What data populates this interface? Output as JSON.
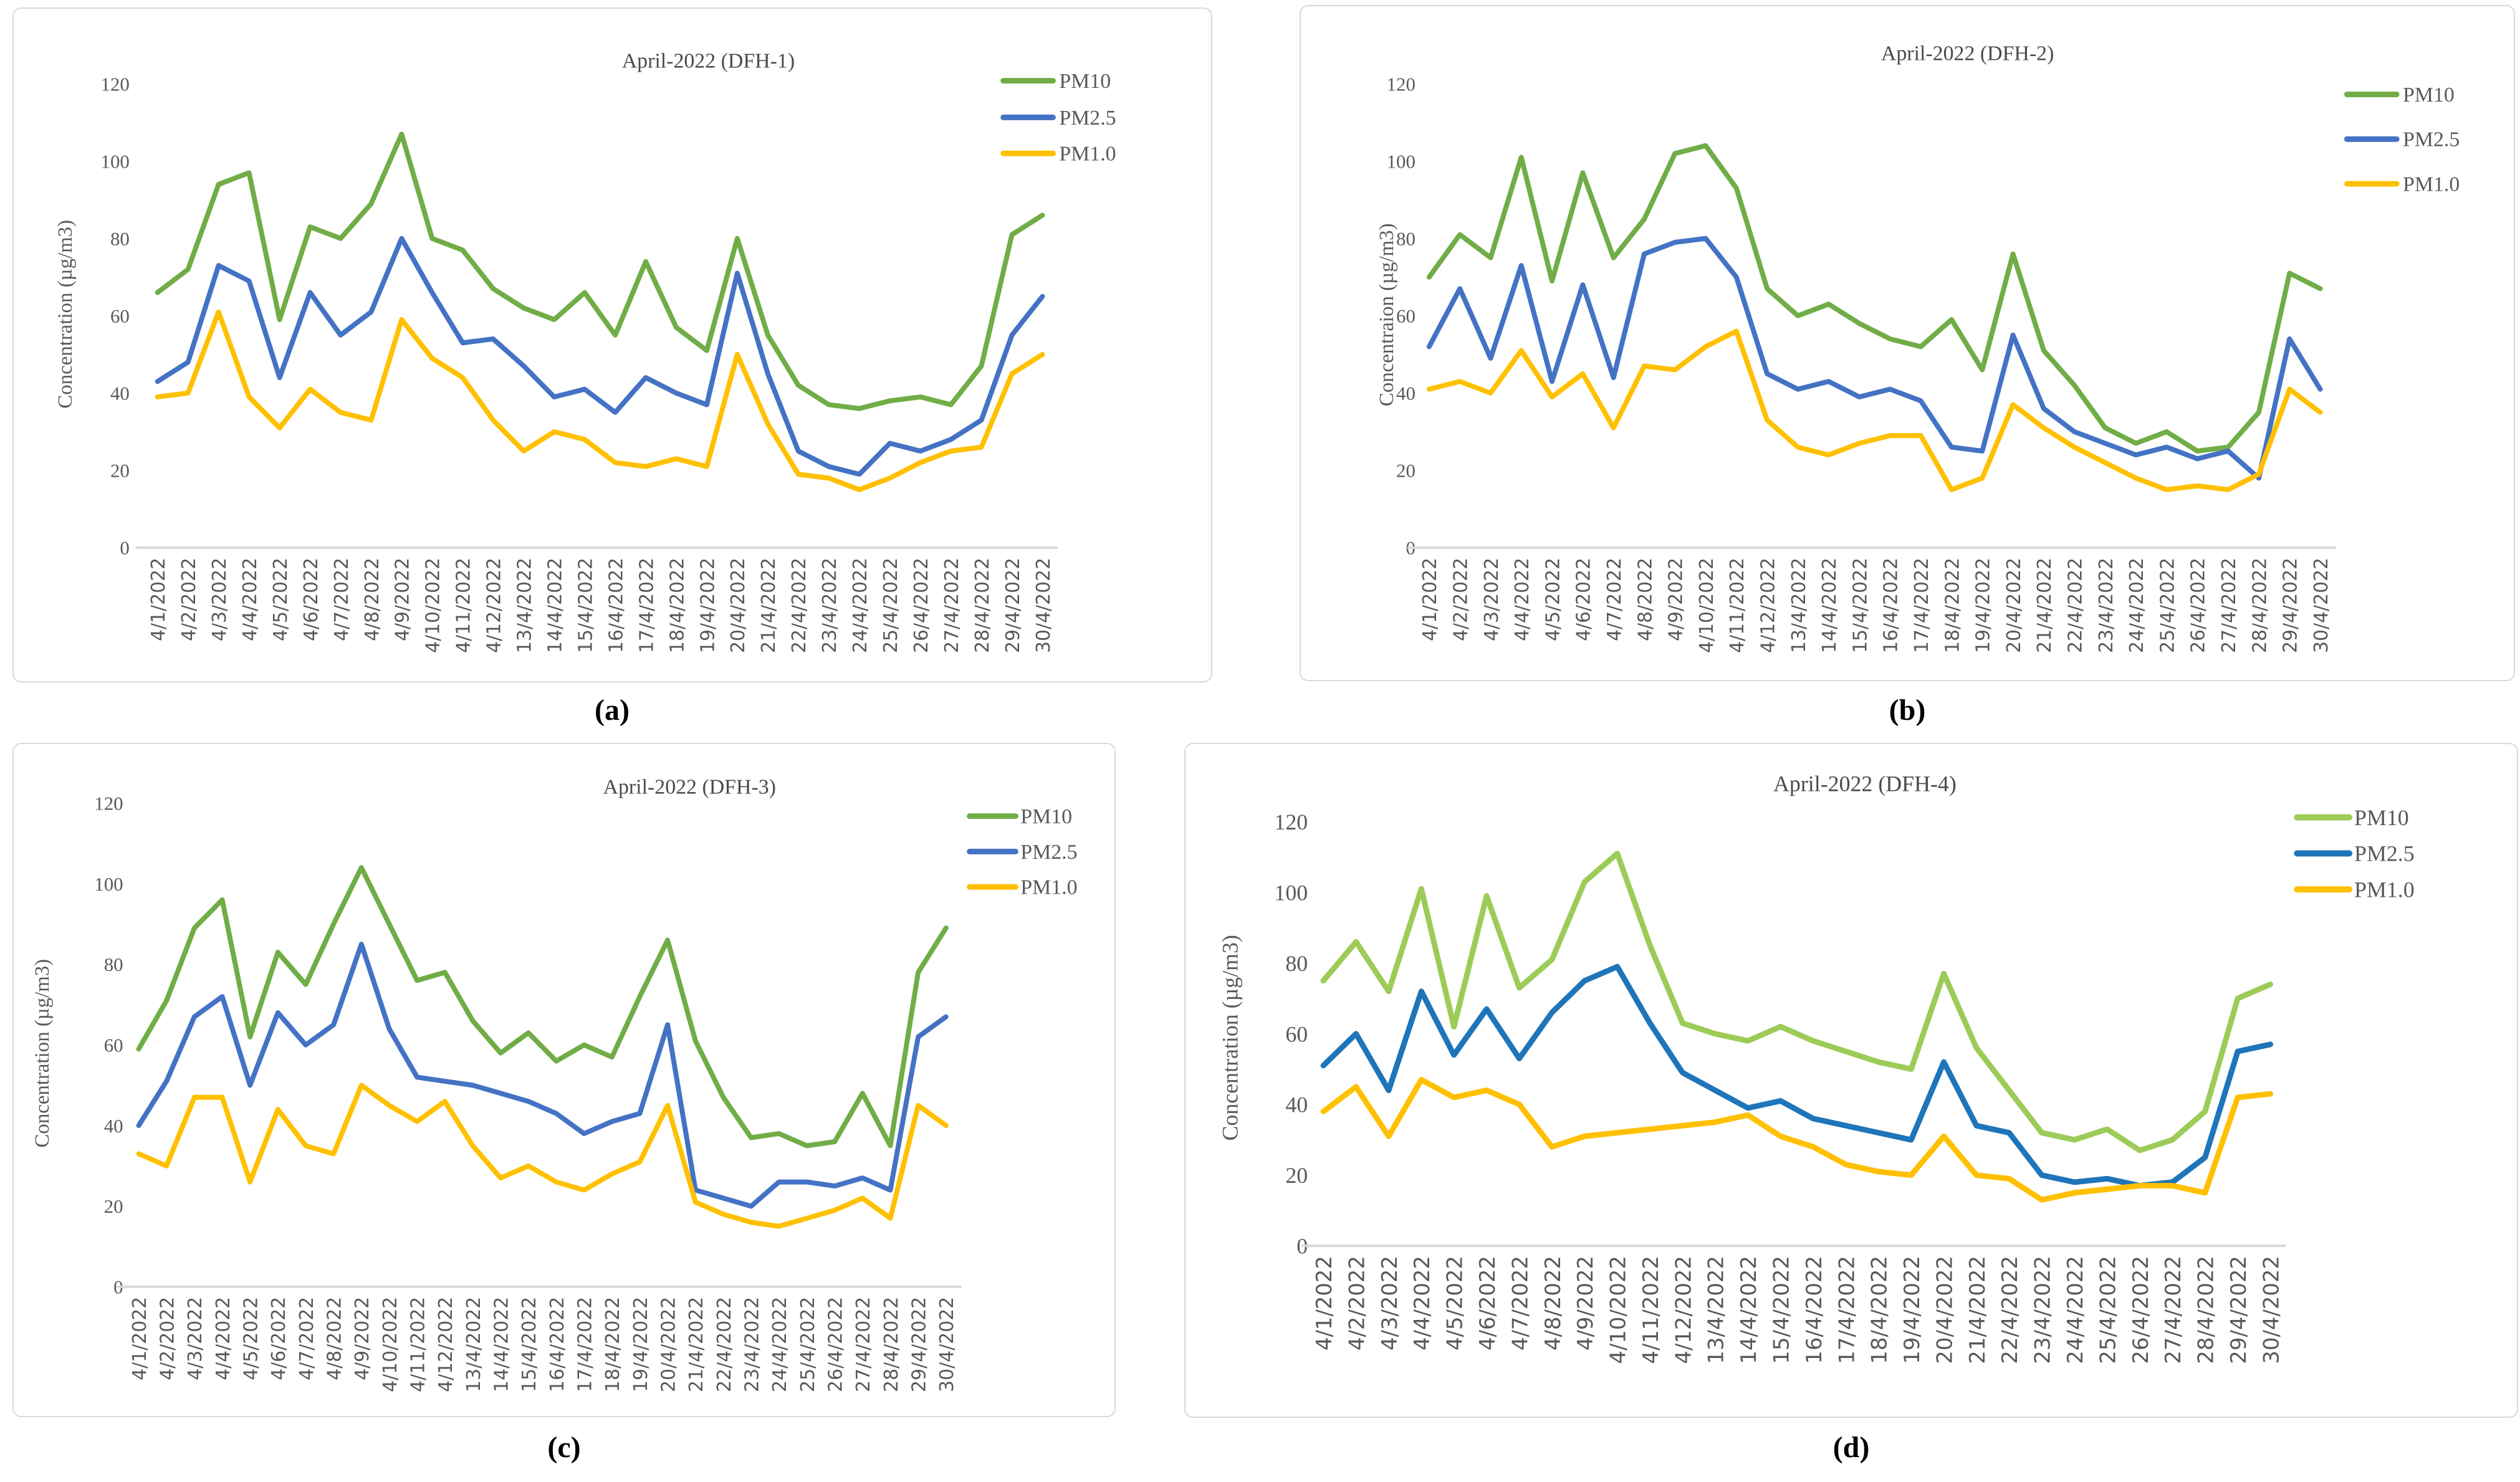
{
  "figure": {
    "background": "#FFFFFF",
    "axis_color": "#D9D9D9",
    "text_color": "#595959"
  },
  "chart_data": [
    {
      "id": "a",
      "caption": "(a)",
      "type": "line",
      "title": "April-2022 (DFH-1)",
      "ylabel": "Concentration (µg/m3)",
      "ylim": [
        0,
        120
      ],
      "yticks": [
        0,
        20,
        40,
        60,
        80,
        100,
        120
      ],
      "grid": false,
      "legend_position": "right",
      "categories": [
        "4/1/2022",
        "4/2/2022",
        "4/3/2022",
        "4/4/2022",
        "4/5/2022",
        "4/6/2022",
        "4/7/2022",
        "4/8/2022",
        "4/9/2022",
        "4/10/2022",
        "4/11/2022",
        "4/12/2022",
        "13/4/2022",
        "14/4/2022",
        "15/4/2022",
        "16/4/2022",
        "17/4/2022",
        "18/4/2022",
        "19/4/2022",
        "20/4/2022",
        "21/4/2022",
        "22/4/2022",
        "23/4/2022",
        "24/4/2022",
        "25/4/2022",
        "26/4/2022",
        "27/4/2022",
        "28/4/2022",
        "29/4/2022",
        "30/4/2022"
      ],
      "series": [
        {
          "name": "PM10",
          "color": "#70AD47",
          "values": [
            66,
            72,
            94,
            97,
            59,
            83,
            80,
            89,
            107,
            80,
            77,
            67,
            62,
            59,
            66,
            55,
            74,
            57,
            51,
            80,
            55,
            42,
            37,
            36,
            38,
            39,
            37,
            47,
            81,
            86
          ]
        },
        {
          "name": "PM2.5",
          "color": "#4472C4",
          "values": [
            43,
            48,
            73,
            69,
            44,
            66,
            55,
            61,
            80,
            66,
            53,
            54,
            47,
            39,
            41,
            35,
            44,
            40,
            37,
            71,
            45,
            25,
            21,
            19,
            27,
            25,
            28,
            33,
            55,
            65
          ]
        },
        {
          "name": "PM1.0",
          "color": "#FFC000",
          "values": [
            39,
            40,
            61,
            39,
            31,
            41,
            35,
            33,
            59,
            49,
            44,
            33,
            25,
            30,
            28,
            22,
            21,
            23,
            21,
            50,
            32,
            19,
            18,
            15,
            18,
            22,
            25,
            26,
            45,
            50
          ]
        }
      ]
    },
    {
      "id": "b",
      "caption": "(b)",
      "type": "line",
      "title": "April-2022 (DFH-2)",
      "ylabel": "Concentraion (µg/m3)",
      "ylim": [
        0,
        120
      ],
      "yticks": [
        0,
        20,
        40,
        60,
        80,
        100,
        120
      ],
      "grid": false,
      "legend_position": "right",
      "categories": [
        "4/1/2022",
        "4/2/2022",
        "4/3/2022",
        "4/4/2022",
        "4/5/2022",
        "4/6/2022",
        "4/7/2022",
        "4/8/2022",
        "4/9/2022",
        "4/10/2022",
        "4/11/2022",
        "4/12/2022",
        "13/4/2022",
        "14/4/2022",
        "15/4/2022",
        "16/4/2022",
        "17/4/2022",
        "18/4/2022",
        "19/4/2022",
        "20/4/2022",
        "21/4/2022",
        "22/4/2022",
        "23/4/2022",
        "24/4/2022",
        "25/4/2022",
        "26/4/2022",
        "27/4/2022",
        "28/4/2022",
        "29/4/2022",
        "30/4/2022"
      ],
      "series": [
        {
          "name": "PM10",
          "color": "#70AD47",
          "values": [
            70,
            81,
            75,
            101,
            69,
            97,
            75,
            85,
            102,
            104,
            93,
            67,
            60,
            63,
            58,
            54,
            52,
            59,
            46,
            76,
            51,
            42,
            31,
            27,
            30,
            25,
            26,
            35,
            71,
            67
          ]
        },
        {
          "name": "PM2.5",
          "color": "#4472C4",
          "values": [
            52,
            67,
            49,
            73,
            43,
            68,
            44,
            76,
            79,
            80,
            70,
            45,
            41,
            43,
            39,
            41,
            38,
            26,
            25,
            55,
            36,
            30,
            27,
            24,
            26,
            23,
            25,
            18,
            54,
            41
          ]
        },
        {
          "name": "PM1.0",
          "color": "#FFC000",
          "values": [
            41,
            43,
            40,
            51,
            39,
            45,
            31,
            47,
            46,
            52,
            56,
            33,
            26,
            24,
            27,
            29,
            29,
            15,
            18,
            37,
            31,
            26,
            22,
            18,
            15,
            16,
            15,
            19,
            41,
            35
          ]
        }
      ]
    },
    {
      "id": "c",
      "caption": "(c)",
      "type": "line",
      "title": "April-2022 (DFH-3)",
      "ylabel": "Concentration (µg/m3)",
      "ylim": [
        0,
        120
      ],
      "yticks": [
        0,
        20,
        40,
        60,
        80,
        100,
        120
      ],
      "grid": false,
      "legend_position": "right",
      "categories": [
        "4/1/2022",
        "4/2/2022",
        "4/3/2022",
        "4/4/2022",
        "4/5/2022",
        "4/6/2022",
        "4/7/2022",
        "4/8/2022",
        "4/9/2022",
        "4/10/2022",
        "4/11/2022",
        "4/12/2022",
        "13/4/2022",
        "14/4/2022",
        "15/4/2022",
        "16/4/2022",
        "17/4/2022",
        "18/4/2022",
        "19/4/2022",
        "20/4/2022",
        "21/4/2022",
        "22/4/2022",
        "23/4/2022",
        "24/4/2022",
        "25/4/2022",
        "26/4/2022",
        "27/4/2022",
        "28/4/2022",
        "29/4/2022",
        "30/4/2022"
      ],
      "series": [
        {
          "name": "PM10",
          "color": "#70AD47",
          "values": [
            59,
            71,
            89,
            96,
            62,
            83,
            75,
            90,
            104,
            90,
            76,
            78,
            66,
            58,
            63,
            56,
            60,
            57,
            72,
            86,
            61,
            47,
            37,
            38,
            35,
            36,
            48,
            35,
            78,
            89
          ]
        },
        {
          "name": "PM2.5",
          "color": "#4472C4",
          "values": [
            40,
            51,
            67,
            72,
            50,
            68,
            60,
            65,
            85,
            64,
            52,
            51,
            50,
            48,
            46,
            43,
            38,
            41,
            43,
            65,
            24,
            22,
            20,
            26,
            26,
            25,
            27,
            24,
            62,
            67
          ]
        },
        {
          "name": "PM1.0",
          "color": "#FFC000",
          "values": [
            33,
            30,
            47,
            47,
            26,
            44,
            35,
            33,
            50,
            45,
            41,
            46,
            35,
            27,
            30,
            26,
            24,
            28,
            31,
            45,
            21,
            18,
            16,
            15,
            17,
            19,
            22,
            17,
            45,
            40
          ]
        }
      ]
    },
    {
      "id": "d",
      "caption": "(d)",
      "type": "line",
      "title": "April-2022 (DFH-4)",
      "ylabel": "Concentration (µg/m3)",
      "ylim": [
        0,
        120
      ],
      "yticks": [
        0,
        20,
        40,
        60,
        80,
        100,
        120
      ],
      "grid": false,
      "legend_position": "right",
      "categories": [
        "4/1/2022",
        "4/2/2022",
        "4/3/2022",
        "4/4/2022",
        "4/5/2022",
        "4/6/2022",
        "4/7/2022",
        "4/8/2022",
        "4/9/2022",
        "4/10/2022",
        "4/11/2022",
        "4/12/2022",
        "13/4/2022",
        "14/4/2022",
        "15/4/2022",
        "16/4/2022",
        "17/4/2022",
        "18/4/2022",
        "19/4/2022",
        "20/4/2022",
        "21/4/2022",
        "22/4/2022",
        "23/4/2022",
        "24/4/2022",
        "25/4/2022",
        "26/4/2022",
        "27/4/2022",
        "28/4/2022",
        "29/4/2022",
        "30/4/2022"
      ],
      "series": [
        {
          "name": "PM10",
          "color": "#9DCB58",
          "values": [
            75,
            86,
            72,
            101,
            62,
            99,
            73,
            81,
            103,
            111,
            85,
            63,
            60,
            58,
            62,
            58,
            55,
            52,
            50,
            77,
            56,
            44,
            32,
            30,
            33,
            27,
            30,
            38,
            70,
            74
          ]
        },
        {
          "name": "PM2.5",
          "color": "#1F75B9",
          "values": [
            51,
            60,
            44,
            72,
            54,
            67,
            53,
            66,
            75,
            79,
            63,
            49,
            44,
            39,
            41,
            36,
            34,
            32,
            30,
            52,
            34,
            32,
            20,
            18,
            19,
            17,
            18,
            25,
            55,
            57
          ]
        },
        {
          "name": "PM1.0",
          "color": "#FFC000",
          "values": [
            38,
            45,
            31,
            47,
            42,
            44,
            40,
            28,
            31,
            32,
            33,
            34,
            35,
            37,
            31,
            28,
            23,
            21,
            20,
            31,
            20,
            19,
            13,
            15,
            16,
            17,
            17,
            15,
            42,
            43
          ]
        }
      ]
    }
  ]
}
